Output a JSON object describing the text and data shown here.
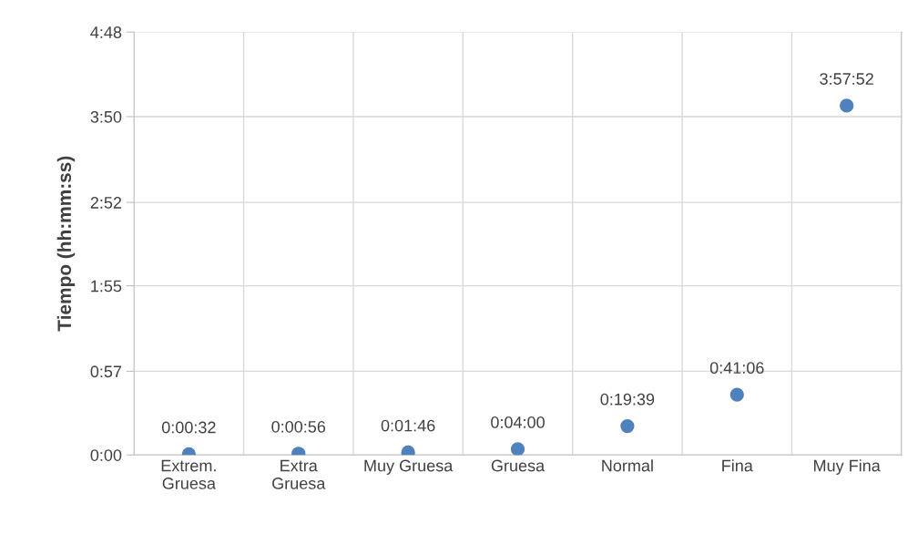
{
  "chart_data": {
    "type": "scatter",
    "ylabel": "Tiempo (hh:mm:ss)",
    "categories": [
      "Extrem.\nGruesa",
      "Extra\nGruesa",
      "Muy Gruesa",
      "Gruesa",
      "Normal",
      "Fina",
      "Muy Fina"
    ],
    "values": [
      0.008889,
      0.015556,
      0.029444,
      0.066667,
      0.3275,
      0.685,
      3.964444
    ],
    "value_labels": [
      "0:00:32",
      "0:00:56",
      "0:01:46",
      "0:04:00",
      "0:19:39",
      "0:41:06",
      "3:57:52"
    ],
    "color": "#4f81bd",
    "marker": "circle",
    "ylim": [
      0,
      4.8
    ],
    "yticks": [
      {
        "value": 0,
        "label": "0:00"
      },
      {
        "value": 0.95,
        "label": "0:57"
      },
      {
        "value": 1.92,
        "label": "1:55"
      },
      {
        "value": 2.866667,
        "label": "2:52"
      },
      {
        "value": 3.84,
        "label": "3:50"
      },
      {
        "value": 4.8,
        "label": "4:48"
      }
    ],
    "grid": true,
    "legend": false
  }
}
